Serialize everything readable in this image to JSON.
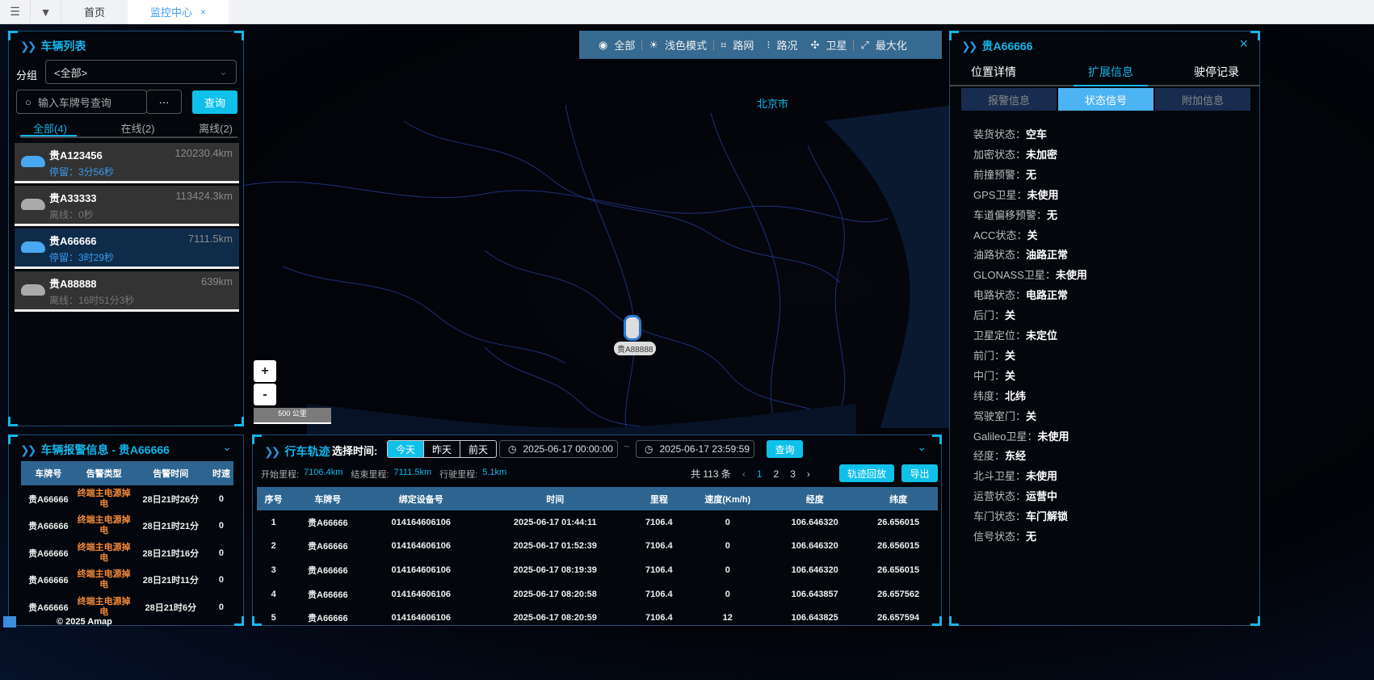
{
  "topbar": {
    "tabs": [
      {
        "label": "首页"
      },
      {
        "label": "监控中心",
        "close": "×"
      }
    ]
  },
  "colors": {
    "accent": "#0fc0ea",
    "header": "#2d6590",
    "alarm": "#f0883a",
    "selected_row": "#0e2c4a"
  },
  "vehicle_list": {
    "title": "车辆列表",
    "group_label": "分组",
    "group_value": "<全部>",
    "search_placeholder": "输入车牌号查询",
    "more_label": "···",
    "query_label": "查询",
    "tabs": [
      {
        "label": "全部(4)"
      },
      {
        "label": "在线(2)"
      },
      {
        "label": "离线(2)"
      }
    ],
    "vehicles": [
      {
        "plate": "贵A123456",
        "mileage": "120230.4km",
        "status": "停留：3分56秒",
        "state": "online"
      },
      {
        "plate": "贵A33333",
        "mileage": "113424.3km",
        "status": "离线：0秒",
        "state": "offline"
      },
      {
        "plate": "贵A66666",
        "mileage": "7111.5km",
        "status": "停留：3时29秒",
        "state": "online",
        "selected": true
      },
      {
        "plate": "贵A88888",
        "mileage": "639km",
        "status": "离线：16时51分3秒",
        "state": "offline"
      }
    ]
  },
  "alarm": {
    "title": "车辆报警信息 - 贵A66666",
    "columns": [
      "车牌号",
      "告警类型",
      "告警时间",
      "时速"
    ],
    "rows": [
      [
        "贵A66666",
        "终端主电源掉电",
        "28日21时26分",
        "0"
      ],
      [
        "贵A66666",
        "终端主电源掉电",
        "28日21时21分",
        "0"
      ],
      [
        "贵A66666",
        "终端主电源掉电",
        "28日21时16分",
        "0"
      ],
      [
        "贵A66666",
        "终端主电源掉电",
        "28日21时11分",
        "0"
      ],
      [
        "贵A66666",
        "终端主电源掉电",
        "28日21时6分",
        "0"
      ]
    ]
  },
  "map": {
    "tools": [
      {
        "icon": "eye-icon",
        "label": "全部"
      },
      {
        "icon": "sun-icon",
        "label": "浅色模式"
      },
      {
        "icon": "road-network-icon",
        "label": "路网"
      },
      {
        "icon": "traffic-light-icon",
        "label": "路况"
      },
      {
        "icon": "satellite-icon",
        "label": "卫星"
      },
      {
        "icon": "maximize-icon",
        "label": "最大化"
      }
    ],
    "city_label": "北京市",
    "marker_label": "贵A88888",
    "zoom_in": "+",
    "zoom_out": "-",
    "scale": "500 公里",
    "copyright": "© 2025 Amap"
  },
  "track": {
    "title": "行车轨迹",
    "time_label": "选择时间:",
    "day_buttons": [
      {
        "label": "今天",
        "active": true
      },
      {
        "label": "昨天"
      },
      {
        "label": "前天"
      }
    ],
    "start_time": "2025-06-17 00:00:00",
    "separator": "~",
    "end_time": "2025-06-17 23:59:59",
    "query_label": "查询",
    "start_mileage_label": "开始里程:",
    "start_mileage": "7106.4km",
    "end_mileage_label": "结束里程:",
    "end_mileage": "7111.5km",
    "drive_mileage_label": "行驶里程:",
    "drive_mileage": "5.1km",
    "total": "共 113 条",
    "pages": [
      "1",
      "2",
      "3"
    ],
    "current_page": "1",
    "prev": "‹",
    "next": "›",
    "playback_label": "轨迹回放",
    "export_label": "导出",
    "columns": [
      "序号",
      "车牌号",
      "绑定设备号",
      "时间",
      "里程",
      "速度(Km/h)",
      "经度",
      "纬度"
    ],
    "rows": [
      [
        "1",
        "贵A66666",
        "014164606106",
        "2025-06-17 01:44:11",
        "7106.4",
        "0",
        "106.646320",
        "26.656015"
      ],
      [
        "2",
        "贵A66666",
        "014164606106",
        "2025-06-17 01:52:39",
        "7106.4",
        "0",
        "106.646320",
        "26.656015"
      ],
      [
        "3",
        "贵A66666",
        "014164606106",
        "2025-06-17 08:19:39",
        "7106.4",
        "0",
        "106.646320",
        "26.656015"
      ],
      [
        "4",
        "贵A66666",
        "014164606106",
        "2025-06-17 08:20:58",
        "7106.4",
        "0",
        "106.643857",
        "26.657562"
      ],
      [
        "5",
        "贵A66666",
        "014164606106",
        "2025-06-17 08:20:59",
        "7106.4",
        "12",
        "106.643825",
        "26.657594"
      ]
    ]
  },
  "detail": {
    "title": "贵A66666",
    "close": "×",
    "tabs": [
      {
        "label": "位置详情"
      },
      {
        "label": "扩展信息",
        "active": true
      },
      {
        "label": "驶停记录"
      }
    ],
    "subtabs": [
      {
        "label": "报警信息"
      },
      {
        "label": "状态信号",
        "active": true
      },
      {
        "label": "附加信息"
      }
    ],
    "fields": [
      {
        "k": "装货状态：",
        "v": "空车"
      },
      {
        "k": "加密状态：",
        "v": "未加密"
      },
      {
        "k": "前撞预警：",
        "v": "无"
      },
      {
        "k": "GPS卫星：",
        "v": "未使用"
      },
      {
        "k": "车道偏移预警：",
        "v": "无"
      },
      {
        "k": "ACC状态：",
        "v": "关"
      },
      {
        "k": "油路状态：",
        "v": "油路正常"
      },
      {
        "k": "GLONASS卫星：",
        "v": "未使用"
      },
      {
        "k": "电路状态：",
        "v": "电路正常"
      },
      {
        "k": "后门：",
        "v": "关"
      },
      {
        "k": "卫星定位：",
        "v": "未定位"
      },
      {
        "k": "前门：",
        "v": "关"
      },
      {
        "k": "中门：",
        "v": "关"
      },
      {
        "k": "纬度：",
        "v": "北纬"
      },
      {
        "k": "驾驶室门：",
        "v": "关"
      },
      {
        "k": "Galileo卫星：",
        "v": "未使用"
      },
      {
        "k": "经度：",
        "v": "东经"
      },
      {
        "k": "北斗卫星：",
        "v": "未使用"
      },
      {
        "k": "运营状态：",
        "v": "运营中"
      },
      {
        "k": "车门状态：",
        "v": "车门解锁"
      },
      {
        "k": "信号状态：",
        "v": "无"
      }
    ]
  }
}
